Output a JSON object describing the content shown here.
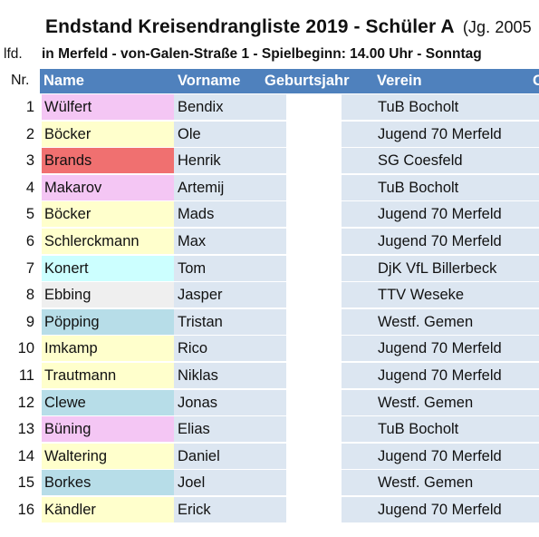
{
  "title": "Endstand Kreisendrangliste 2019 - Schüler A",
  "title_suffix": "(Jg. 2005",
  "sub_label": "lfd.",
  "sub_info": "in Merfeld - von-Galen-Straße 1 - Spielbeginn: 14.00 Uhr - Sonntag",
  "header": {
    "nr": "Nr.",
    "name": "Name",
    "vorname": "Vorname",
    "geburtsjahr": "Geburtsjahr",
    "verein": "Verein",
    "extra": "C",
    "color": "#4f81bd"
  },
  "rows": [
    {
      "nr": "1",
      "name": "Wülfert",
      "vorname": "Bendix",
      "verein": "TuB Bocholt",
      "color": "#f4c6f4"
    },
    {
      "nr": "2",
      "name": "Böcker",
      "vorname": "Ole",
      "verein": "Jugend 70 Merfeld",
      "color": "#ffffcc"
    },
    {
      "nr": "3",
      "name": "Brands",
      "vorname": "Henrik",
      "verein": "SG Coesfeld",
      "color": "#f07070"
    },
    {
      "nr": "4",
      "name": "Makarov",
      "vorname": "Artemij",
      "verein": "TuB Bocholt",
      "color": "#f4c6f4"
    },
    {
      "nr": "5",
      "name": "Böcker",
      "vorname": "Mads",
      "verein": "Jugend 70 Merfeld",
      "color": "#ffffcc"
    },
    {
      "nr": "6",
      "name": "Schlerckmann",
      "vorname": "Max",
      "verein": "Jugend 70 Merfeld",
      "color": "#ffffcc"
    },
    {
      "nr": "7",
      "name": "Konert",
      "vorname": "Tom",
      "verein": "DjK VfL Billerbeck",
      "color": "#ccffff"
    },
    {
      "nr": "8",
      "name": "Ebbing",
      "vorname": "Jasper",
      "verein": "TTV Weseke",
      "color": "#efefef"
    },
    {
      "nr": "9",
      "name": "Pöpping",
      "vorname": "Tristan",
      "verein": "Westf. Gemen",
      "color": "#b7dde8"
    },
    {
      "nr": "10",
      "name": "Imkamp",
      "vorname": "Rico",
      "verein": "Jugend 70 Merfeld",
      "color": "#ffffcc"
    },
    {
      "nr": "11",
      "name": "Trautmann",
      "vorname": "Niklas",
      "verein": "Jugend 70 Merfeld",
      "color": "#ffffcc"
    },
    {
      "nr": "12",
      "name": "Clewe",
      "vorname": "Jonas",
      "verein": "Westf. Gemen",
      "color": "#b7dde8"
    },
    {
      "nr": "13",
      "name": "Büning",
      "vorname": "Elias",
      "verein": "TuB Bocholt",
      "color": "#f4c6f4"
    },
    {
      "nr": "14",
      "name": "Waltering",
      "vorname": "Daniel",
      "verein": "Jugend 70 Merfeld",
      "color": "#ffffcc"
    },
    {
      "nr": "15",
      "name": "Borkes",
      "vorname": "Joel",
      "verein": "Westf. Gemen",
      "color": "#b7dde8"
    },
    {
      "nr": "16",
      "name": "Kändler",
      "vorname": "Erick",
      "verein": "Jugend 70 Merfeld",
      "color": "#ffffcc"
    }
  ]
}
